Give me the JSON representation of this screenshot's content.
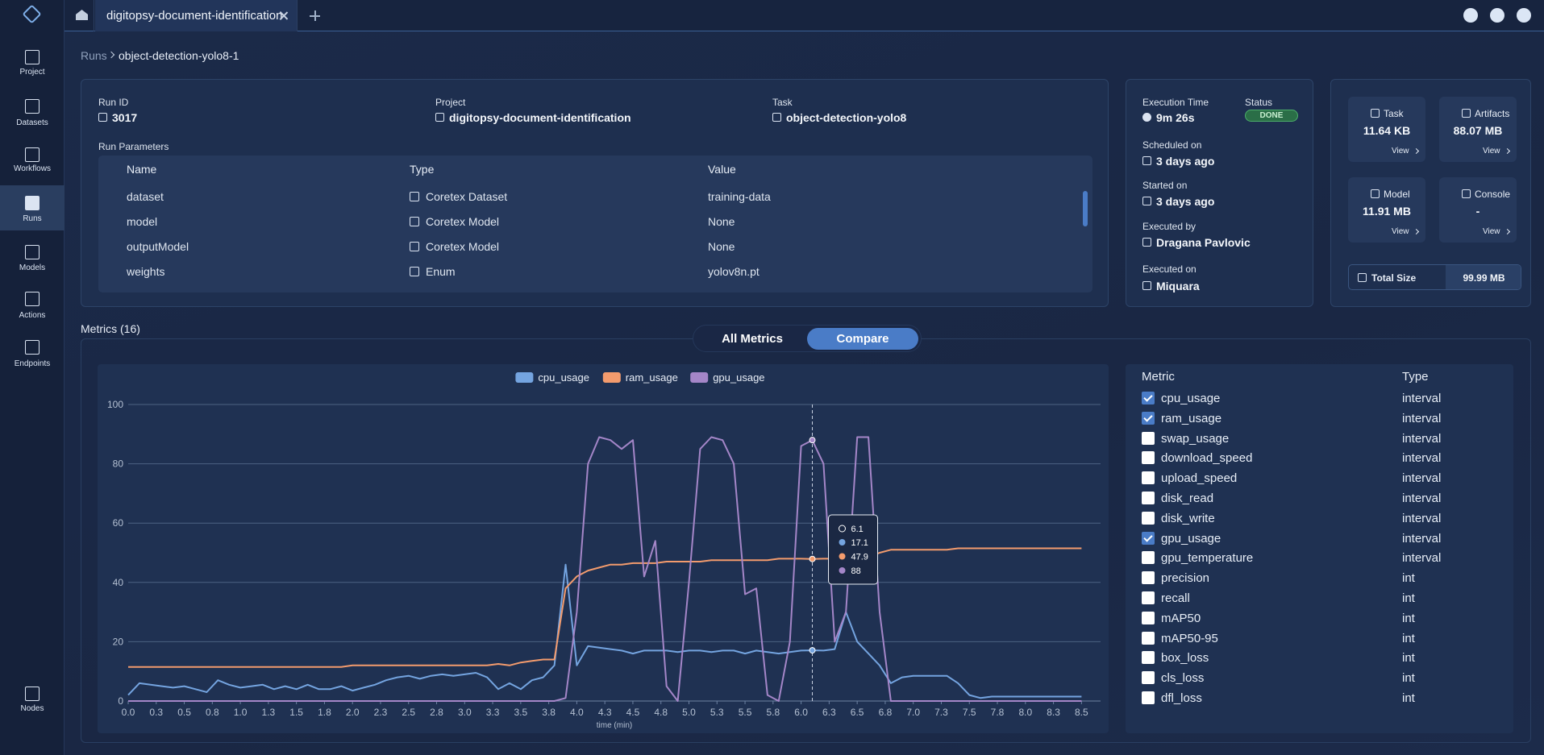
{
  "sidebar": {
    "items": [
      "Project",
      "Datasets",
      "Workflows",
      "Runs",
      "Models",
      "Actions",
      "Endpoints",
      "Nodes"
    ],
    "active_item": "Runs"
  },
  "tab": {
    "title": "digitopsy-document-identification"
  },
  "breadcrumb": [
    "Runs",
    "object-detection-yolo8-1"
  ],
  "run_info": {
    "fields": [
      {
        "label": "Run ID",
        "value": "3017"
      },
      {
        "label": "Project",
        "value": "digitopsy-document-identification"
      },
      {
        "label": "Task",
        "value": "object-detection-yolo8"
      }
    ]
  },
  "run_parameters": {
    "title": "Run Parameters",
    "columns": [
      "Name",
      "Type",
      "Value"
    ],
    "rows": [
      [
        "dataset",
        "Coretex Dataset",
        "training-data"
      ],
      [
        "model",
        "Coretex Model",
        "None"
      ],
      [
        "outputModel",
        "Coretex Model",
        "None"
      ],
      [
        "weights",
        "Enum",
        "yolov8n.pt"
      ]
    ]
  },
  "execution": {
    "time": {
      "label": "Execution Time",
      "value": "9m 26s"
    },
    "status": {
      "label": "Status",
      "value": "DONE"
    },
    "fields": [
      {
        "label": "Scheduled on",
        "value": "3 days ago"
      },
      {
        "label": "Started on",
        "value": "3 days ago"
      },
      {
        "label": "Executed by",
        "value": "Dragana Pavlovic"
      },
      {
        "label": "Executed on",
        "value": "Miquara"
      }
    ]
  },
  "storage": {
    "cards": [
      {
        "label": "Task",
        "value": "11.64 KB",
        "action": "View"
      },
      {
        "label": "Artifacts",
        "value": "88.07 MB",
        "action": "View"
      },
      {
        "label": "Model",
        "value": "11.91 MB",
        "action": "View"
      },
      {
        "label": "Console",
        "value": "-",
        "action": "View"
      }
    ],
    "total": {
      "label": "Total Size",
      "value": "99.99 MB"
    }
  },
  "metrics_header": "Metrics (16)",
  "view_toggle": {
    "options": [
      "All Metrics",
      "Compare"
    ],
    "selected": "Compare"
  },
  "metrics_table": {
    "columns": [
      "Metric",
      "Type"
    ],
    "rows": [
      {
        "name": "cpu_usage",
        "type": "interval",
        "checked": true
      },
      {
        "name": "ram_usage",
        "type": "interval",
        "checked": true
      },
      {
        "name": "swap_usage",
        "type": "interval",
        "checked": false
      },
      {
        "name": "download_speed",
        "type": "interval",
        "checked": false
      },
      {
        "name": "upload_speed",
        "type": "interval",
        "checked": false
      },
      {
        "name": "disk_read",
        "type": "interval",
        "checked": false
      },
      {
        "name": "disk_write",
        "type": "interval",
        "checked": false
      },
      {
        "name": "gpu_usage",
        "type": "interval",
        "checked": true
      },
      {
        "name": "gpu_temperature",
        "type": "interval",
        "checked": false
      },
      {
        "name": "precision",
        "type": "int",
        "checked": false
      },
      {
        "name": "recall",
        "type": "int",
        "checked": false
      },
      {
        "name": "mAP50",
        "type": "int",
        "checked": false
      },
      {
        "name": "mAP50-95",
        "type": "int",
        "checked": false
      },
      {
        "name": "box_loss",
        "type": "int",
        "checked": false
      },
      {
        "name": "cls_loss",
        "type": "int",
        "checked": false
      },
      {
        "name": "dfl_loss",
        "type": "int",
        "checked": false
      }
    ]
  },
  "chart_data": {
    "type": "line",
    "xlabel": "time (min)",
    "legend": "top",
    "grid": true,
    "xlim": [
      0,
      8.67
    ],
    "ylim": [
      0,
      100
    ],
    "yticks": [
      0,
      20,
      40,
      60,
      80,
      100
    ],
    "xticks": [
      {
        "value": 0,
        "label": "0.0"
      },
      {
        "value": 0.25,
        "label": "0.3"
      },
      0.5,
      {
        "value": 0.75,
        "label": "0.8"
      },
      {
        "value": 1,
        "label": "1.0"
      },
      {
        "value": 1.25,
        "label": "1.3"
      },
      1.5,
      {
        "value": 1.75,
        "label": "1.8"
      },
      {
        "value": 2,
        "label": "2.0"
      },
      {
        "value": 2.25,
        "label": "2.3"
      },
      2.5,
      {
        "value": 2.75,
        "label": "2.8"
      },
      {
        "value": 3,
        "label": "3.0"
      },
      {
        "value": 3.25,
        "label": "3.3"
      },
      3.5,
      {
        "value": 3.75,
        "label": "3.8"
      },
      {
        "value": 4,
        "label": "4.0"
      },
      {
        "value": 4.25,
        "label": "4.3"
      },
      4.5,
      {
        "value": 4.75,
        "label": "4.8"
      },
      {
        "value": 5,
        "label": "5.0"
      },
      {
        "value": 5.25,
        "label": "5.3"
      },
      5.5,
      {
        "value": 5.75,
        "label": "5.8"
      },
      {
        "value": 6,
        "label": "6.0"
      },
      {
        "value": 6.25,
        "label": "6.3"
      },
      6.5,
      {
        "value": 6.75,
        "label": "6.8"
      },
      {
        "value": 7,
        "label": "7.0"
      },
      {
        "value": 7.25,
        "label": "7.3"
      },
      7.5,
      {
        "value": 7.75,
        "label": "7.8"
      },
      {
        "value": 8,
        "label": "8.0"
      },
      {
        "value": 8.25,
        "label": "8.3"
      },
      8.5
    ],
    "x": [
      0,
      0.1,
      0.2,
      0.3,
      0.4,
      0.5,
      0.6,
      0.7,
      0.8,
      0.9,
      1,
      1.1,
      1.2,
      1.3,
      1.4,
      1.5,
      1.6,
      1.7,
      1.8,
      1.9,
      2,
      2.1,
      2.2,
      2.3,
      2.4,
      2.5,
      2.6,
      2.7,
      2.8,
      2.9,
      3,
      3.1,
      3.2,
      3.3,
      3.4,
      3.5,
      3.6,
      3.7,
      3.8,
      3.9,
      4,
      4.1,
      4.2,
      4.3,
      4.4,
      4.5,
      4.6,
      4.7,
      4.8,
      4.9,
      5,
      5.1,
      5.2,
      5.3,
      5.4,
      5.5,
      5.6,
      5.7,
      5.8,
      5.9,
      6,
      6.1,
      6.2,
      6.3,
      6.4,
      6.5,
      6.6,
      6.7,
      6.8,
      6.9,
      7,
      7.1,
      7.2,
      7.3,
      7.4,
      7.5,
      7.6,
      7.7,
      7.8,
      7.9,
      8,
      8.1,
      8.2,
      8.3,
      8.4,
      8.5
    ],
    "series": [
      {
        "name": "cpu_usage",
        "color": "#74a4e0",
        "values": [
          2,
          6,
          5.5,
          5,
          4.5,
          5,
          4,
          3,
          7,
          5.5,
          4.5,
          5,
          5.5,
          4,
          5,
          4,
          5.5,
          4,
          4,
          5,
          3.5,
          4.5,
          5.5,
          7,
          8,
          8.5,
          7.5,
          8.5,
          9,
          8.5,
          9,
          9.5,
          8,
          4,
          6,
          4,
          7,
          8,
          12,
          46,
          12,
          18.5,
          18,
          17.5,
          17,
          16,
          17,
          17,
          17,
          16.5,
          17,
          17,
          16.5,
          17,
          17,
          16,
          17,
          16.5,
          16,
          16.5,
          17,
          17.1,
          17,
          17.5,
          30,
          20,
          16,
          12,
          6,
          8,
          8.5,
          8.5,
          8.5,
          8.5,
          6,
          2,
          1,
          1.5,
          1.5,
          1.5,
          1.5,
          1.5,
          1.5,
          1.5,
          1.5,
          1.5
        ]
      },
      {
        "name": "ram_usage",
        "color": "#f39b6d",
        "values": [
          11.5,
          11.5,
          11.5,
          11.5,
          11.5,
          11.5,
          11.5,
          11.5,
          11.5,
          11.5,
          11.5,
          11.5,
          11.5,
          11.5,
          11.5,
          11.5,
          11.5,
          11.5,
          11.5,
          11.5,
          12,
          12,
          12,
          12,
          12,
          12,
          12,
          12,
          12,
          12,
          12,
          12,
          12,
          12.5,
          12,
          13,
          13.5,
          14,
          14,
          38,
          42,
          44,
          45,
          46,
          46,
          46.5,
          46.5,
          46.5,
          47,
          47,
          47,
          47,
          47.5,
          47.5,
          47.5,
          47.5,
          47.5,
          47.5,
          48,
          48,
          48,
          47.9,
          48,
          48,
          48,
          48.5,
          48.5,
          50,
          51,
          51,
          51,
          51,
          51,
          51,
          51.5,
          51.5,
          51.5,
          51.5,
          51.5,
          51.5,
          51.5,
          51.5,
          51.5,
          51.5,
          51.5,
          51.5
        ]
      },
      {
        "name": "gpu_usage",
        "color": "#a486c8",
        "values": [
          0,
          0,
          0,
          0,
          0,
          0,
          0,
          0,
          0,
          0,
          0,
          0,
          0,
          0,
          0,
          0,
          0,
          0,
          0,
          0,
          0,
          0,
          0,
          0,
          0,
          0,
          0,
          0,
          0,
          0,
          0,
          0,
          0,
          0,
          0,
          0,
          0,
          0,
          0,
          1,
          30,
          80,
          89,
          88,
          85,
          88,
          42,
          54,
          5,
          0,
          40,
          85,
          89,
          88,
          80,
          36,
          38,
          2,
          0,
          20,
          86,
          88,
          80,
          20,
          30,
          89,
          89,
          30,
          0,
          0,
          0,
          0,
          0,
          0,
          0,
          0,
          0,
          0,
          0,
          0,
          0,
          0,
          0,
          0,
          0,
          0
        ]
      }
    ],
    "tooltip": {
      "x": 6.1
    }
  }
}
